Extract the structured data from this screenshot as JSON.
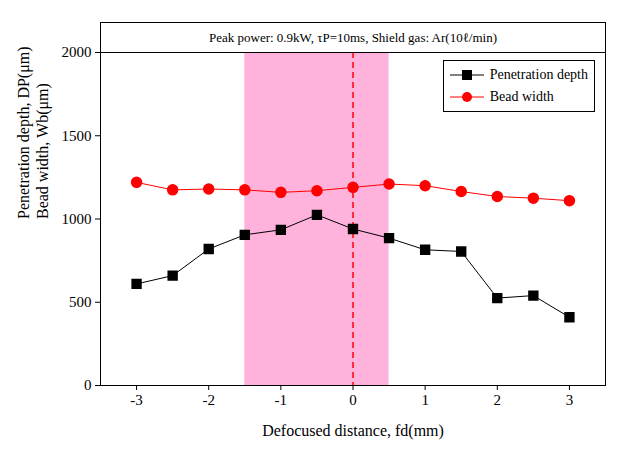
{
  "chart_data": {
    "type": "line",
    "title": "Peak power: 0.9kW, τP=10ms, Shield gas: Ar(10ℓ/min)",
    "xlabel": "Defocused distance, fd(mm)",
    "ylabel": [
      "Penetration depth, DP(μm)",
      "Bead width, Wb(μm)"
    ],
    "x": [
      -3,
      -2.5,
      -2,
      -1.5,
      -1,
      -0.5,
      0,
      0.5,
      1,
      1.5,
      2,
      2.5,
      3
    ],
    "series": [
      {
        "name": "Penetration depth",
        "color": "#000000",
        "marker": "square",
        "values": [
          610,
          660,
          820,
          905,
          935,
          1025,
          940,
          885,
          815,
          805,
          525,
          540,
          410
        ]
      },
      {
        "name": "Bead width",
        "color": "#ff0000",
        "marker": "circle",
        "values": [
          1220,
          1175,
          1180,
          1175,
          1160,
          1170,
          1190,
          1210,
          1200,
          1165,
          1135,
          1125,
          1110
        ]
      }
    ],
    "xlim": [
      -3.5,
      3.5
    ],
    "xticks": [
      -3,
      -2,
      -1,
      0,
      1,
      2,
      3
    ],
    "ylim": [
      0,
      2000
    ],
    "yticks": [
      0,
      500,
      1000,
      1500,
      2000
    ],
    "shaded_region": [
      -1.5,
      0.5
    ],
    "reference_line": 0,
    "legend": "upper right",
    "grid": false
  }
}
